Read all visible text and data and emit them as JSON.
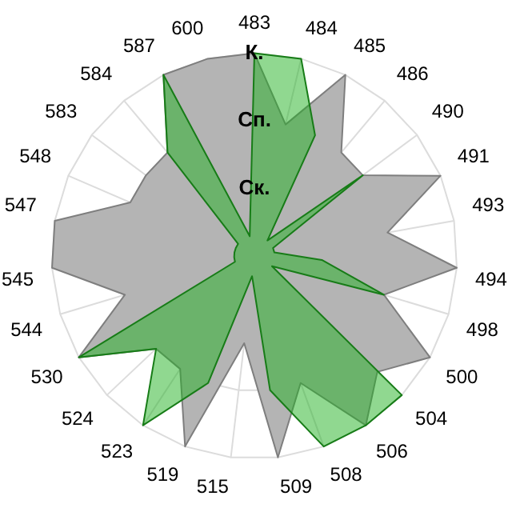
{
  "chart_data": {
    "type": "radar",
    "categories": [
      "483",
      "484",
      "485",
      "486",
      "490",
      "491",
      "493",
      "494",
      "498",
      "500",
      "504",
      "506",
      "508",
      "509",
      "515",
      "519",
      "523",
      "524",
      "530",
      "544",
      "545",
      "547",
      "548",
      "583",
      "584",
      "587",
      "600"
    ],
    "series": [
      {
        "color": "#b4b4b4",
        "values": [
          3,
          2,
          3,
          2,
          2,
          3,
          2,
          3,
          2,
          3,
          2.5,
          3,
          2,
          3,
          1.3,
          3,
          2,
          2,
          3,
          2,
          3,
          3,
          2,
          2,
          2,
          3,
          3
        ]
      },
      {
        "color": "#21b121",
        "values": [
          3,
          3,
          2,
          0.3,
          2,
          0.3,
          0.3,
          1,
          2,
          0.3,
          3,
          3,
          3,
          2,
          0.3,
          2,
          3,
          2,
          3,
          0.3,
          0.3,
          0.3,
          0.3,
          0.3,
          2,
          3,
          0.3
        ]
      }
    ],
    "ylim": [
      0,
      3
    ],
    "yticks": [
      {
        "value": 1,
        "label": "Ск."
      },
      {
        "value": 2,
        "label": "Сп."
      },
      {
        "value": 3,
        "label": "К."
      }
    ],
    "grid": true,
    "legend": false,
    "marker": "none"
  }
}
